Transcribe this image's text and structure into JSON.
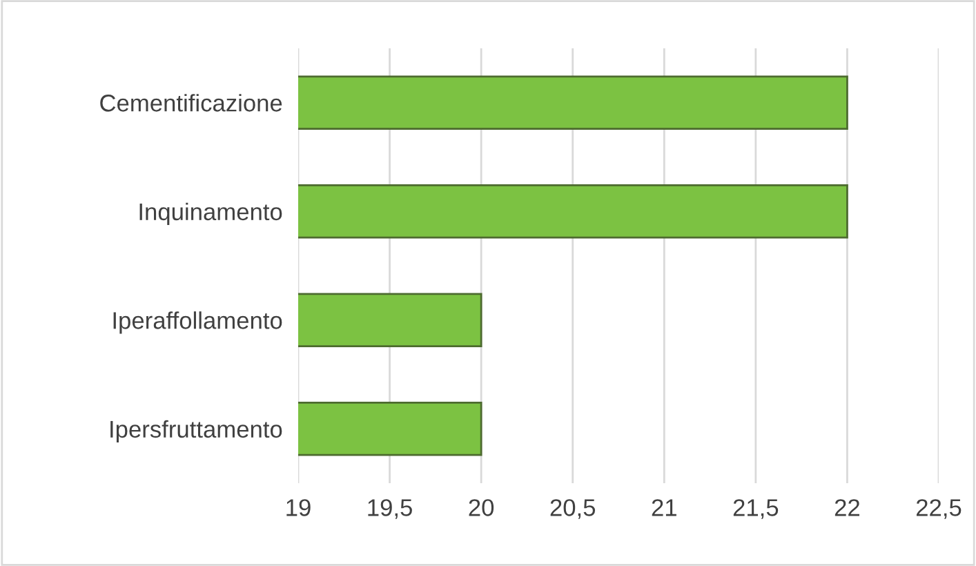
{
  "chart_data": {
    "type": "bar",
    "orientation": "horizontal",
    "categories": [
      "Cementificazione",
      "Inquinamento",
      "Iperaffollamento",
      "Ipersfruttamento"
    ],
    "values": [
      22,
      22,
      20,
      20
    ],
    "color": "#7cc242",
    "xlim": [
      19,
      22.5
    ],
    "xticks": [
      19,
      {
        "value": 19.5,
        "label": "19,5"
      },
      20,
      {
        "value": 20.5,
        "label": "20,5"
      },
      21,
      {
        "value": 21.5,
        "label": "21,5"
      },
      22,
      {
        "value": 22.5,
        "label": "22,5"
      }
    ],
    "grid": "x",
    "legend": false
  }
}
